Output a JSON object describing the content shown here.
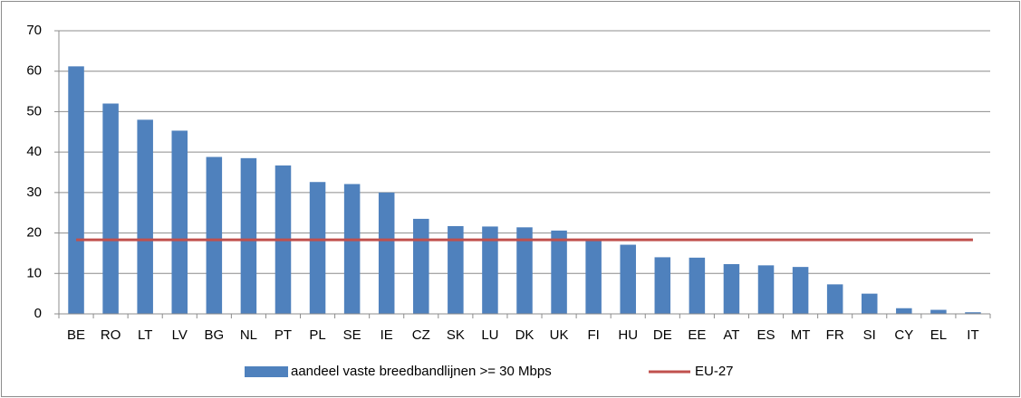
{
  "chart_data": {
    "type": "bar",
    "categories": [
      "BE",
      "RO",
      "LT",
      "LV",
      "BG",
      "NL",
      "PT",
      "PL",
      "SE",
      "IE",
      "CZ",
      "SK",
      "LU",
      "DK",
      "UK",
      "FI",
      "HU",
      "DE",
      "EE",
      "AT",
      "ES",
      "MT",
      "FR",
      "SI",
      "CY",
      "EL",
      "IT"
    ],
    "series": [
      {
        "name": "aandeel vaste breedbandlijnen >= 30 Mbps",
        "color": "#4f81bd",
        "type": "bar",
        "values": [
          61.2,
          52,
          48,
          45.3,
          38.8,
          38.5,
          36.7,
          32.6,
          32.1,
          30,
          23.5,
          21.7,
          21.6,
          21.4,
          20.6,
          18.2,
          17.1,
          14,
          13.9,
          12.3,
          12,
          11.6,
          7.3,
          5,
          1.4,
          1,
          0.4
        ]
      },
      {
        "name": "EU-27",
        "color": "#c0504d",
        "type": "line",
        "values": [
          18.3,
          18.3,
          18.3,
          18.3,
          18.3,
          18.3,
          18.3,
          18.3,
          18.3,
          18.3,
          18.3,
          18.3,
          18.3,
          18.3,
          18.3,
          18.3,
          18.3,
          18.3,
          18.3,
          18.3,
          18.3,
          18.3,
          18.3,
          18.3,
          18.3,
          18.3,
          18.3
        ]
      }
    ],
    "ylim": [
      0,
      70
    ],
    "yticks": [
      0,
      10,
      20,
      30,
      40,
      50,
      60,
      70
    ],
    "grid": true,
    "legend": "bottom"
  }
}
